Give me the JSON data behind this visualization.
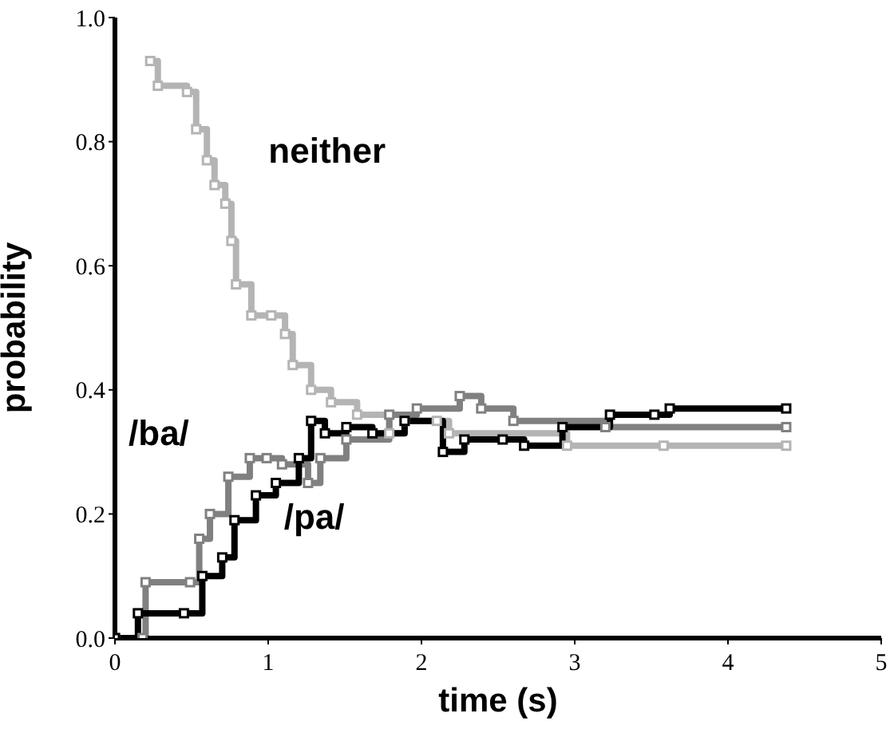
{
  "chart_data": {
    "type": "step",
    "xlabel": "time (s)",
    "ylabel": "probability",
    "xlim": [
      0,
      5
    ],
    "xticks": [
      0,
      1,
      2,
      3,
      4,
      5
    ],
    "ylim": [
      0,
      1
    ],
    "yticks": [
      {
        "value": 0,
        "label": "0.0"
      },
      {
        "value": 0.2,
        "label": "0.2"
      },
      {
        "value": 0.4,
        "label": "0.4"
      },
      {
        "value": 0.6,
        "label": "0.6"
      },
      {
        "value": 0.8,
        "label": "0.8"
      },
      {
        "value": 1,
        "label": "1.0"
      }
    ],
    "legend": false,
    "marker": "square",
    "line_style": "solid",
    "series": [
      {
        "name": "neither",
        "color": "#b4b4b4",
        "x": [
          0.23,
          0.28,
          0.47,
          0.53,
          0.6,
          0.65,
          0.72,
          0.76,
          0.79,
          0.89,
          1.02,
          1.11,
          1.16,
          1.28,
          1.41,
          1.58,
          1.79,
          1.89,
          2.1,
          2.18,
          2.95,
          3.58,
          4.38
        ],
        "values": [
          0.93,
          0.89,
          0.88,
          0.82,
          0.77,
          0.73,
          0.7,
          0.64,
          0.57,
          0.52,
          0.52,
          0.49,
          0.44,
          0.4,
          0.38,
          0.36,
          0.33,
          0.35,
          0.35,
          0.33,
          0.31,
          0.31,
          0.31
        ]
      },
      {
        "name": "/ba/",
        "color": "#808080",
        "x": [
          0,
          0.18,
          0.2,
          0.49,
          0.55,
          0.62,
          0.74,
          0.88,
          0.99,
          1.09,
          1.26,
          1.34,
          1.51,
          1.79,
          1.97,
          2.25,
          2.39,
          2.6,
          3.2,
          4.38
        ],
        "values": [
          0,
          0,
          0.09,
          0.09,
          0.16,
          0.2,
          0.26,
          0.29,
          0.29,
          0.28,
          0.25,
          0.29,
          0.32,
          0.36,
          0.37,
          0.39,
          0.37,
          0.35,
          0.34,
          0.34
        ]
      },
      {
        "name": "/pa/",
        "color": "#000000",
        "x": [
          0,
          0.15,
          0.45,
          0.57,
          0.7,
          0.78,
          0.92,
          1.05,
          1.2,
          1.28,
          1.37,
          1.51,
          1.68,
          1.89,
          2.14,
          2.28,
          2.53,
          2.67,
          2.92,
          3.23,
          3.52,
          3.62,
          4.38
        ],
        "values": [
          0,
          0.04,
          0.04,
          0.1,
          0.13,
          0.19,
          0.23,
          0.25,
          0.29,
          0.35,
          0.33,
          0.34,
          0.33,
          0.35,
          0.3,
          0.32,
          0.32,
          0.31,
          0.34,
          0.36,
          0.36,
          0.37,
          0.37
        ]
      }
    ]
  }
}
